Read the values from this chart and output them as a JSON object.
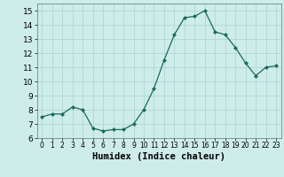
{
  "x": [
    0,
    1,
    2,
    3,
    4,
    5,
    6,
    7,
    8,
    9,
    10,
    11,
    12,
    13,
    14,
    15,
    16,
    17,
    18,
    19,
    20,
    21,
    22,
    23
  ],
  "y": [
    7.5,
    7.7,
    7.7,
    8.2,
    8.0,
    6.7,
    6.5,
    6.6,
    6.6,
    7.0,
    8.0,
    9.5,
    11.5,
    13.3,
    14.5,
    14.6,
    15.0,
    13.5,
    13.3,
    12.4,
    11.3,
    10.4,
    11.0,
    11.1
  ],
  "line_color": "#1a6b5a",
  "marker": "D",
  "marker_size": 2,
  "bg_color": "#ceecea",
  "grid_color": "#aed8d4",
  "xlabel": "Humidex (Indice chaleur)",
  "xlim": [
    -0.5,
    23.5
  ],
  "ylim": [
    6,
    15.5
  ],
  "yticks": [
    6,
    7,
    8,
    9,
    10,
    11,
    12,
    13,
    14,
    15
  ],
  "xticks": [
    0,
    1,
    2,
    3,
    4,
    5,
    6,
    7,
    8,
    9,
    10,
    11,
    12,
    13,
    14,
    15,
    16,
    17,
    18,
    19,
    20,
    21,
    22,
    23
  ],
  "tick_fontsize": 6.5,
  "xlabel_fontsize": 7.5
}
